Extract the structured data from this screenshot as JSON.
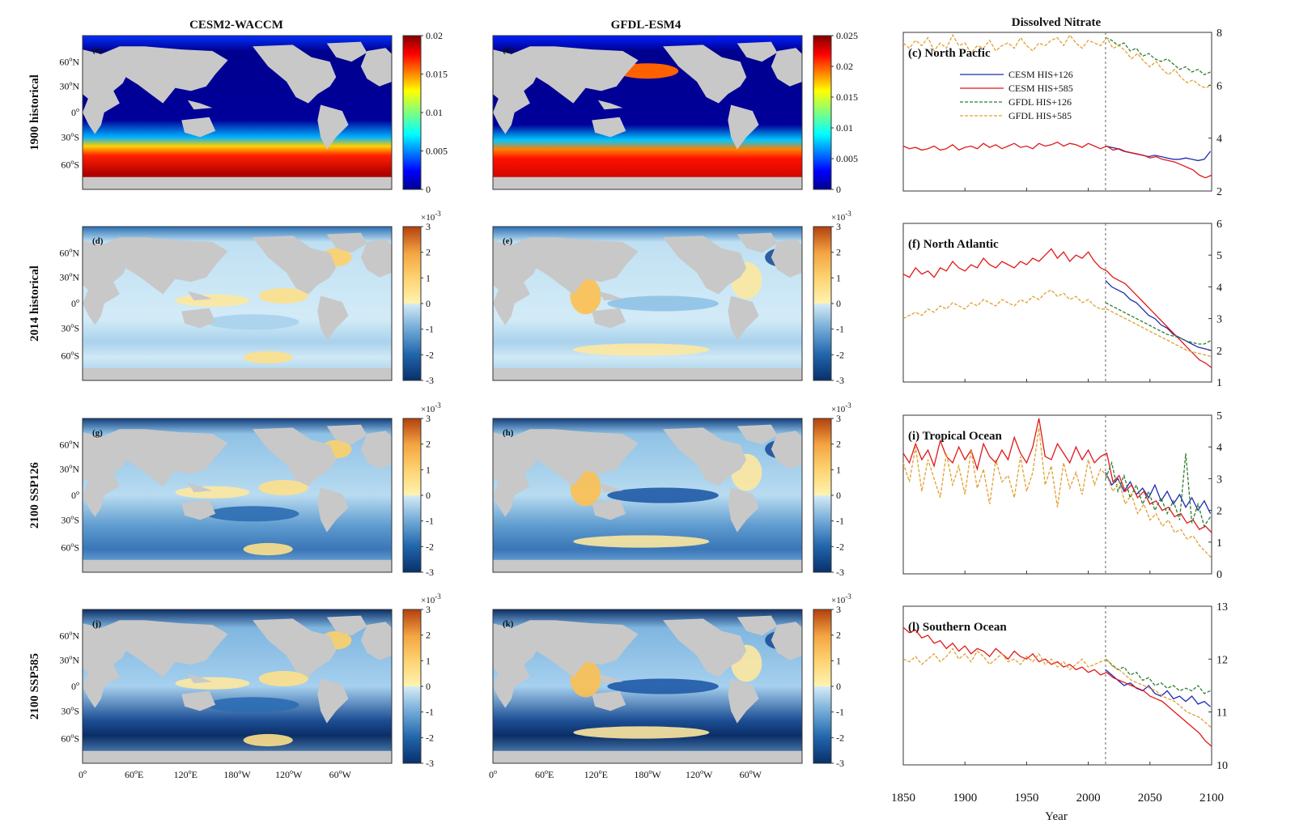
{
  "figure": {
    "column_titles": {
      "cesm": "CESM2-WACCM",
      "gfdl": "GFDL-ESM4",
      "nitrate": "Dissolved Nitrate"
    },
    "row_labels": [
      "1900 historical",
      "2014 historical",
      "2100 SSP126",
      "2100 SSP585"
    ],
    "panel_labels": {
      "maps_cesm": [
        "(a)",
        "(d)",
        "(g)",
        "(j)"
      ],
      "maps_gfdl": [
        "(b)",
        "(e)",
        "(h)",
        "(k)"
      ],
      "series": [
        "(c) North Pacfic",
        "(f) North Atlantic",
        "(i) Tropical Ocean",
        "(l) Southern Ocean"
      ]
    },
    "map_lat_ticks": [
      "60",
      "N",
      "30",
      "N",
      "0",
      "30",
      "S",
      "60",
      "S"
    ],
    "map_lon_ticks": [
      "0",
      "60",
      "E",
      "120",
      "E",
      "180",
      "W",
      "120",
      "W",
      "60",
      "W"
    ],
    "colorbars": {
      "row1_cesm": [
        "0.02",
        "0.015",
        "0.01",
        "0.005",
        "0"
      ],
      "row1_gfdl": [
        "0.025",
        "0.02",
        "0.015",
        "0.01",
        "0.005",
        "0"
      ],
      "anomaly": [
        "3",
        "2",
        "1",
        "0",
        "-1",
        "-2",
        "-3"
      ],
      "exponent_base": "×10",
      "exponent": "-3",
      "degree": "o"
    },
    "legend": [
      "CESM HIS+126",
      "CESM HIS+585",
      "GFDL HIS+126",
      "GFDL HIS+585"
    ],
    "xaxis": {
      "ticks": [
        "1850",
        "1900",
        "1950",
        "2000",
        "2050",
        "2100"
      ],
      "label": "Year"
    }
  },
  "chart_data": [
    {
      "type": "line",
      "title": "(c) North Pacfic",
      "xlim": [
        1850,
        2100
      ],
      "ylim": [
        2,
        8
      ],
      "yticks": [
        2,
        4,
        6,
        8
      ],
      "scenario_split_year": 2014,
      "series": [
        {
          "name": "CESM HIS+126",
          "color": "#1f2bb0",
          "dash": false,
          "start": 2014,
          "step": 5,
          "values": [
            3.7,
            3.65,
            3.6,
            3.5,
            3.45,
            3.4,
            3.35,
            3.3,
            3.35,
            3.3,
            3.25,
            3.2,
            3.2,
            3.25,
            3.2,
            3.15,
            3.2,
            3.5
          ]
        },
        {
          "name": "CESM HIS+585",
          "color": "#e01818",
          "dash": false,
          "start": 1850,
          "step": 5,
          "values": [
            3.7,
            3.6,
            3.65,
            3.55,
            3.6,
            3.7,
            3.55,
            3.6,
            3.75,
            3.55,
            3.65,
            3.7,
            3.6,
            3.8,
            3.65,
            3.75,
            3.6,
            3.7,
            3.8,
            3.65,
            3.7,
            3.6,
            3.8,
            3.7,
            3.75,
            3.85,
            3.7,
            3.8,
            3.75,
            3.65,
            3.8,
            3.7,
            3.6,
            3.7,
            3.55,
            3.6,
            3.5,
            3.45,
            3.4,
            3.35,
            3.25,
            3.3,
            3.2,
            3.15,
            3.1,
            3.0,
            2.9,
            2.8,
            2.6,
            2.5,
            2.6
          ]
        },
        {
          "name": "GFDL HIS+126",
          "color": "#2e7d2e",
          "dash": true,
          "start": 2014,
          "step": 5,
          "values": [
            7.8,
            7.7,
            7.5,
            7.6,
            7.3,
            7.4,
            7.1,
            7.2,
            7.0,
            6.9,
            7.0,
            6.8,
            6.6,
            6.7,
            6.5,
            6.6,
            6.4,
            6.5
          ]
        },
        {
          "name": "GFDL HIS+585",
          "color": "#e0a030",
          "dash": true,
          "start": 1850,
          "step": 5,
          "values": [
            7.6,
            7.4,
            7.7,
            7.5,
            7.8,
            7.3,
            7.6,
            7.4,
            7.9,
            7.5,
            7.6,
            7.2,
            7.5,
            7.4,
            7.7,
            7.3,
            7.5,
            7.6,
            7.4,
            7.8,
            7.5,
            7.3,
            7.6,
            7.5,
            7.7,
            7.8,
            7.5,
            7.9,
            7.6,
            7.4,
            7.7,
            7.6,
            7.5,
            7.8,
            7.4,
            7.5,
            7.3,
            7.0,
            7.2,
            6.9,
            6.7,
            6.9,
            6.6,
            6.4,
            6.6,
            6.3,
            6.1,
            6.2,
            6.0,
            5.9,
            6.0
          ]
        }
      ]
    },
    {
      "type": "line",
      "title": "(f) North Atlantic",
      "xlim": [
        1850,
        2100
      ],
      "ylim": [
        1,
        6
      ],
      "yticks": [
        1,
        2,
        3,
        4,
        5,
        6
      ],
      "scenario_split_year": 2014,
      "series": [
        {
          "name": "CESM HIS+126",
          "color": "#1f2bb0",
          "dash": false,
          "start": 2014,
          "step": 5,
          "values": [
            4.2,
            4.0,
            3.9,
            3.8,
            3.6,
            3.5,
            3.3,
            3.1,
            3.0,
            2.8,
            2.7,
            2.5,
            2.4,
            2.3,
            2.2,
            2.1,
            2.05,
            2.0
          ]
        },
        {
          "name": "CESM HIS+585",
          "color": "#e01818",
          "dash": false,
          "start": 1850,
          "step": 5,
          "values": [
            4.4,
            4.3,
            4.6,
            4.4,
            4.5,
            4.3,
            4.6,
            4.5,
            4.8,
            4.6,
            4.5,
            4.7,
            4.6,
            4.9,
            4.7,
            4.6,
            4.8,
            4.7,
            4.6,
            4.8,
            4.7,
            4.9,
            4.8,
            5.0,
            5.2,
            4.9,
            5.1,
            4.8,
            5.0,
            4.9,
            5.1,
            4.8,
            4.6,
            4.5,
            4.3,
            4.2,
            4.1,
            3.9,
            3.7,
            3.5,
            3.3,
            3.1,
            2.9,
            2.7,
            2.5,
            2.3,
            2.1,
            1.9,
            1.7,
            1.6,
            1.45
          ]
        },
        {
          "name": "GFDL HIS+126",
          "color": "#2e7d2e",
          "dash": true,
          "start": 2014,
          "step": 5,
          "values": [
            3.5,
            3.4,
            3.3,
            3.2,
            3.1,
            3.0,
            2.9,
            2.8,
            2.7,
            2.6,
            2.5,
            2.45,
            2.4,
            2.3,
            2.25,
            2.2,
            2.2,
            2.3
          ]
        },
        {
          "name": "GFDL HIS+585",
          "color": "#e0a030",
          "dash": true,
          "start": 1850,
          "step": 5,
          "values": [
            3.0,
            3.1,
            3.2,
            3.1,
            3.3,
            3.2,
            3.4,
            3.3,
            3.5,
            3.4,
            3.3,
            3.5,
            3.4,
            3.6,
            3.5,
            3.4,
            3.6,
            3.5,
            3.4,
            3.6,
            3.5,
            3.7,
            3.6,
            3.8,
            3.9,
            3.7,
            3.8,
            3.6,
            3.7,
            3.5,
            3.6,
            3.4,
            3.3,
            3.3,
            3.2,
            3.1,
            3.0,
            2.9,
            2.8,
            2.7,
            2.6,
            2.5,
            2.4,
            2.3,
            2.2,
            2.1,
            2.0,
            1.95,
            1.9,
            1.85,
            1.8
          ]
        }
      ]
    },
    {
      "type": "line",
      "title": "(i) Tropical Ocean",
      "xlim": [
        1850,
        2100
      ],
      "ylim": [
        0,
        5
      ],
      "yticks": [
        0,
        1,
        2,
        3,
        4,
        5
      ],
      "scenario_split_year": 2014,
      "series": [
        {
          "name": "CESM HIS+126",
          "color": "#1f2bb0",
          "dash": false,
          "start": 2014,
          "step": 5,
          "values": [
            3.2,
            2.8,
            3.0,
            2.6,
            2.9,
            2.5,
            2.7,
            2.4,
            2.8,
            2.3,
            2.6,
            2.2,
            2.5,
            2.1,
            2.4,
            2.0,
            2.3,
            1.9
          ]
        },
        {
          "name": "CESM HIS+585",
          "color": "#e01818",
          "dash": false,
          "start": 1850,
          "step": 5,
          "values": [
            3.8,
            3.5,
            4.1,
            3.6,
            3.9,
            3.4,
            4.2,
            3.7,
            3.5,
            4.0,
            3.6,
            3.9,
            3.3,
            4.1,
            3.7,
            3.5,
            3.9,
            3.6,
            4.3,
            3.8,
            3.5,
            4.0,
            4.9,
            3.7,
            3.6,
            4.1,
            3.8,
            3.5,
            4.0,
            3.6,
            3.9,
            3.5,
            3.7,
            3.8,
            2.9,
            3.1,
            2.6,
            2.8,
            2.4,
            2.6,
            2.2,
            2.3,
            2.0,
            2.1,
            1.8,
            1.9,
            1.6,
            1.7,
            1.4,
            1.5,
            1.3
          ]
        },
        {
          "name": "GFDL HIS+126",
          "color": "#2e7d2e",
          "dash": true,
          "start": 2014,
          "step": 5,
          "values": [
            3.0,
            3.5,
            2.6,
            3.1,
            2.4,
            2.8,
            2.2,
            2.6,
            2.0,
            2.4,
            1.9,
            2.3,
            1.7,
            3.8,
            1.6,
            2.2,
            1.5,
            1.8
          ]
        },
        {
          "name": "GFDL HIS+585",
          "color": "#e0a030",
          "dash": true,
          "start": 1850,
          "step": 5,
          "values": [
            3.5,
            2.9,
            4.0,
            2.6,
            3.6,
            3.0,
            2.4,
            3.8,
            2.8,
            3.4,
            2.5,
            3.9,
            2.7,
            3.3,
            2.2,
            3.6,
            2.9,
            3.1,
            2.4,
            3.7,
            2.6,
            3.2,
            4.6,
            2.8,
            3.4,
            2.1,
            3.5,
            2.7,
            3.2,
            2.5,
            3.6,
            2.8,
            3.3,
            3.1,
            2.6,
            2.9,
            2.2,
            2.5,
            1.9,
            2.2,
            1.7,
            1.9,
            1.5,
            1.7,
            1.3,
            1.4,
            1.1,
            1.2,
            0.9,
            0.7,
            0.5
          ]
        }
      ]
    },
    {
      "type": "line",
      "title": "(l) Southern Ocean",
      "xlim": [
        1850,
        2100
      ],
      "ylim": [
        10,
        13
      ],
      "yticks": [
        10,
        11,
        12,
        13
      ],
      "scenario_split_year": 2014,
      "series": [
        {
          "name": "CESM HIS+126",
          "color": "#1f2bb0",
          "dash": false,
          "start": 2014,
          "step": 5,
          "values": [
            11.8,
            11.7,
            11.6,
            11.5,
            11.55,
            11.45,
            11.4,
            11.5,
            11.35,
            11.3,
            11.4,
            11.25,
            11.3,
            11.2,
            11.3,
            11.15,
            11.2,
            11.1
          ]
        },
        {
          "name": "CESM HIS+585",
          "color": "#e01818",
          "dash": false,
          "start": 1850,
          "step": 5,
          "values": [
            12.6,
            12.5,
            12.55,
            12.4,
            12.45,
            12.3,
            12.35,
            12.2,
            12.3,
            12.15,
            12.25,
            12.1,
            12.2,
            12.15,
            12.05,
            12.2,
            12.1,
            12.0,
            12.15,
            12.05,
            12.0,
            12.1,
            11.95,
            12.0,
            11.9,
            11.95,
            11.85,
            11.9,
            11.8,
            11.85,
            11.75,
            11.8,
            11.7,
            11.75,
            11.65,
            11.6,
            11.55,
            11.5,
            11.45,
            11.4,
            11.3,
            11.25,
            11.2,
            11.1,
            11.0,
            10.9,
            10.8,
            10.7,
            10.6,
            10.45,
            10.35
          ]
        },
        {
          "name": "GFDL HIS+126",
          "color": "#2e7d2e",
          "dash": true,
          "start": 2014,
          "step": 5,
          "values": [
            12.0,
            11.9,
            11.8,
            11.85,
            11.7,
            11.75,
            11.6,
            11.65,
            11.5,
            11.55,
            11.45,
            11.5,
            11.4,
            11.45,
            11.4,
            11.5,
            11.35,
            11.4
          ]
        },
        {
          "name": "GFDL HIS+585",
          "color": "#e0a030",
          "dash": true,
          "start": 1850,
          "step": 5,
          "values": [
            12.0,
            11.95,
            12.05,
            11.9,
            12.0,
            12.1,
            11.95,
            12.05,
            12.2,
            12.0,
            12.1,
            11.95,
            12.15,
            12.05,
            11.9,
            12.0,
            12.1,
            11.95,
            12.0,
            11.9,
            12.05,
            11.95,
            12.1,
            11.9,
            12.0,
            11.85,
            11.95,
            11.8,
            11.9,
            12.0,
            11.85,
            11.9,
            11.95,
            12.0,
            11.85,
            11.8,
            11.7,
            11.6,
            11.55,
            11.5,
            11.45,
            11.4,
            11.3,
            11.25,
            11.2,
            11.1,
            11.0,
            10.95,
            10.9,
            10.8,
            10.7
          ]
        }
      ]
    }
  ]
}
